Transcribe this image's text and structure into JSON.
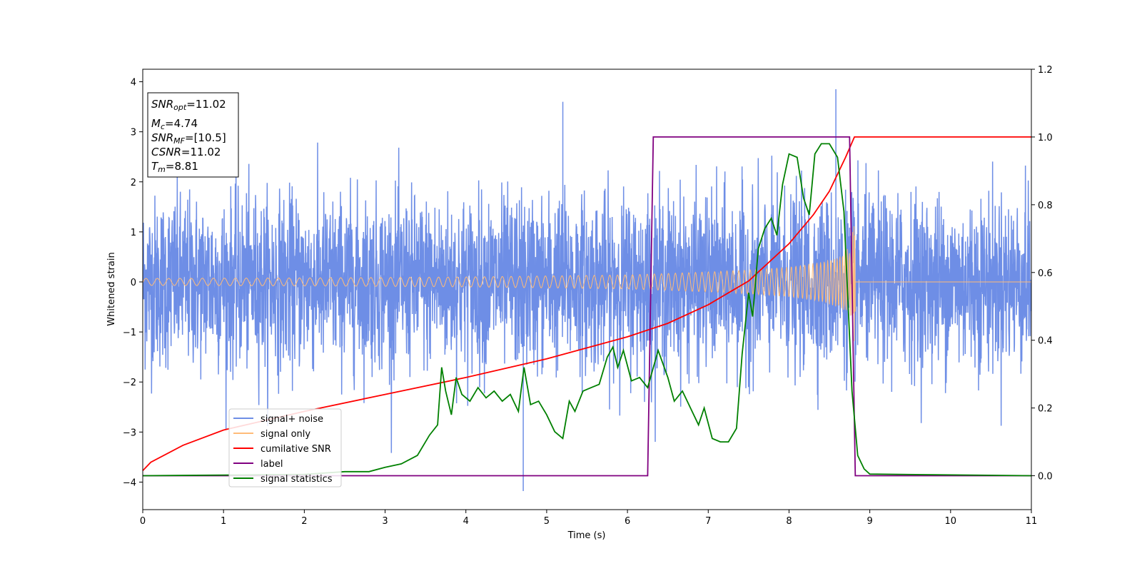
{
  "chart_data": {
    "type": "line",
    "title": "",
    "xlabel": "Time (s)",
    "ylabel": "Whitened strain",
    "y2label": "",
    "xlim": [
      0,
      11
    ],
    "ylim": [
      -4.55,
      4.25
    ],
    "y2lim": [
      -0.1,
      1.2
    ],
    "x_ticks": [
      "0",
      "1",
      "2",
      "3",
      "4",
      "5",
      "6",
      "7",
      "8",
      "9",
      "10",
      "11"
    ],
    "y_ticks": [
      "−4",
      "−3",
      "−2",
      "−1",
      "0",
      "1",
      "2",
      "3",
      "4"
    ],
    "y2_ticks": [
      "0.0",
      "0.2",
      "0.4",
      "0.6",
      "0.8",
      "1.0",
      "1.2"
    ],
    "grid": false,
    "legend_position": "lower-left",
    "series": [
      {
        "name": "signal+ noise",
        "axis": "left",
        "color": "#6e8ee6",
        "style": "dense noise, std ~0.85, spanning about -4.2 to 3.85",
        "x_range": [
          0,
          11
        ],
        "notable_peaks": [
          [
            4.71,
            -4.18
          ],
          [
            8.58,
            3.85
          ],
          [
            5.2,
            3.6
          ],
          [
            4.71,
            -0.55
          ]
        ]
      },
      {
        "name": "signal only",
        "axis": "left",
        "color": "#ffbb78",
        "style": "chirp oscillation with growing amplitude until merger",
        "envelope": [
          [
            0,
            0.07
          ],
          [
            2,
            0.08
          ],
          [
            4,
            0.1
          ],
          [
            6,
            0.14
          ],
          [
            7,
            0.2
          ],
          [
            7.5,
            0.24
          ],
          [
            8,
            0.3
          ],
          [
            8.4,
            0.4
          ],
          [
            8.6,
            0.5
          ],
          [
            8.75,
            0.7
          ],
          [
            8.81,
            1.2
          ],
          [
            8.83,
            0.0
          ],
          [
            11,
            0.0
          ]
        ]
      },
      {
        "name": "cumilative SNR",
        "axis": "right",
        "color": "#ff0000",
        "points": [
          [
            0,
            0.015
          ],
          [
            0.1,
            0.04
          ],
          [
            0.5,
            0.09
          ],
          [
            1,
            0.135
          ],
          [
            2,
            0.19
          ],
          [
            3,
            0.24
          ],
          [
            4,
            0.29
          ],
          [
            5,
            0.345
          ],
          [
            6,
            0.41
          ],
          [
            6.5,
            0.45
          ],
          [
            7,
            0.505
          ],
          [
            7.5,
            0.575
          ],
          [
            8,
            0.685
          ],
          [
            8.3,
            0.77
          ],
          [
            8.5,
            0.84
          ],
          [
            8.7,
            0.94
          ],
          [
            8.81,
            1.0
          ],
          [
            11,
            1.0
          ]
        ]
      },
      {
        "name": "label",
        "axis": "right",
        "color": "#800080",
        "points": [
          [
            0,
            0.0
          ],
          [
            6.25,
            0.0
          ],
          [
            6.32,
            1.0
          ],
          [
            8.75,
            1.0
          ],
          [
            8.82,
            0.0
          ],
          [
            11,
            0.0
          ]
        ]
      },
      {
        "name": "signal statistics",
        "axis": "right",
        "color": "#008000",
        "points": [
          [
            0,
            0.0
          ],
          [
            1,
            0.002
          ],
          [
            2,
            0.004
          ],
          [
            2.5,
            0.012
          ],
          [
            2.8,
            0.012
          ],
          [
            3.0,
            0.025
          ],
          [
            3.2,
            0.035
          ],
          [
            3.4,
            0.06
          ],
          [
            3.55,
            0.12
          ],
          [
            3.65,
            0.15
          ],
          [
            3.7,
            0.32
          ],
          [
            3.75,
            0.25
          ],
          [
            3.82,
            0.18
          ],
          [
            3.88,
            0.29
          ],
          [
            3.95,
            0.24
          ],
          [
            4.05,
            0.22
          ],
          [
            4.15,
            0.26
          ],
          [
            4.25,
            0.23
          ],
          [
            4.35,
            0.25
          ],
          [
            4.45,
            0.22
          ],
          [
            4.55,
            0.24
          ],
          [
            4.65,
            0.19
          ],
          [
            4.72,
            0.32
          ],
          [
            4.8,
            0.21
          ],
          [
            4.9,
            0.22
          ],
          [
            5.0,
            0.18
          ],
          [
            5.1,
            0.13
          ],
          [
            5.2,
            0.11
          ],
          [
            5.28,
            0.22
          ],
          [
            5.35,
            0.19
          ],
          [
            5.45,
            0.25
          ],
          [
            5.55,
            0.26
          ],
          [
            5.65,
            0.27
          ],
          [
            5.75,
            0.35
          ],
          [
            5.82,
            0.38
          ],
          [
            5.88,
            0.32
          ],
          [
            5.95,
            0.37
          ],
          [
            6.05,
            0.28
          ],
          [
            6.15,
            0.29
          ],
          [
            6.25,
            0.26
          ],
          [
            6.38,
            0.37
          ],
          [
            6.5,
            0.29
          ],
          [
            6.58,
            0.22
          ],
          [
            6.68,
            0.25
          ],
          [
            6.78,
            0.2
          ],
          [
            6.88,
            0.15
          ],
          [
            6.95,
            0.2
          ],
          [
            7.05,
            0.11
          ],
          [
            7.15,
            0.1
          ],
          [
            7.25,
            0.1
          ],
          [
            7.35,
            0.14
          ],
          [
            7.42,
            0.36
          ],
          [
            7.5,
            0.54
          ],
          [
            7.55,
            0.47
          ],
          [
            7.62,
            0.67
          ],
          [
            7.7,
            0.73
          ],
          [
            7.78,
            0.76
          ],
          [
            7.85,
            0.71
          ],
          [
            7.92,
            0.86
          ],
          [
            8.0,
            0.95
          ],
          [
            8.1,
            0.94
          ],
          [
            8.18,
            0.82
          ],
          [
            8.25,
            0.77
          ],
          [
            8.32,
            0.95
          ],
          [
            8.4,
            0.98
          ],
          [
            8.5,
            0.98
          ],
          [
            8.6,
            0.94
          ],
          [
            8.68,
            0.78
          ],
          [
            8.78,
            0.25
          ],
          [
            8.85,
            0.06
          ],
          [
            8.93,
            0.02
          ],
          [
            9.0,
            0.005
          ],
          [
            11,
            0.0
          ]
        ]
      }
    ]
  },
  "info_box": {
    "snr_opt_label": "SNR",
    "snr_opt_sub": "opt",
    "snr_opt_value": "=11.02",
    "mc_label": "M",
    "mc_sub": "c",
    "mc_value": "=4.74",
    "snr_mf_label": "SNR",
    "snr_mf_sub": "MF",
    "snr_mf_value": "=[10.5]",
    "csnr_label": "CSNR",
    "csnr_value": "=11.02",
    "tm_label": "T",
    "tm_sub": "m",
    "tm_value": "=8.81"
  }
}
